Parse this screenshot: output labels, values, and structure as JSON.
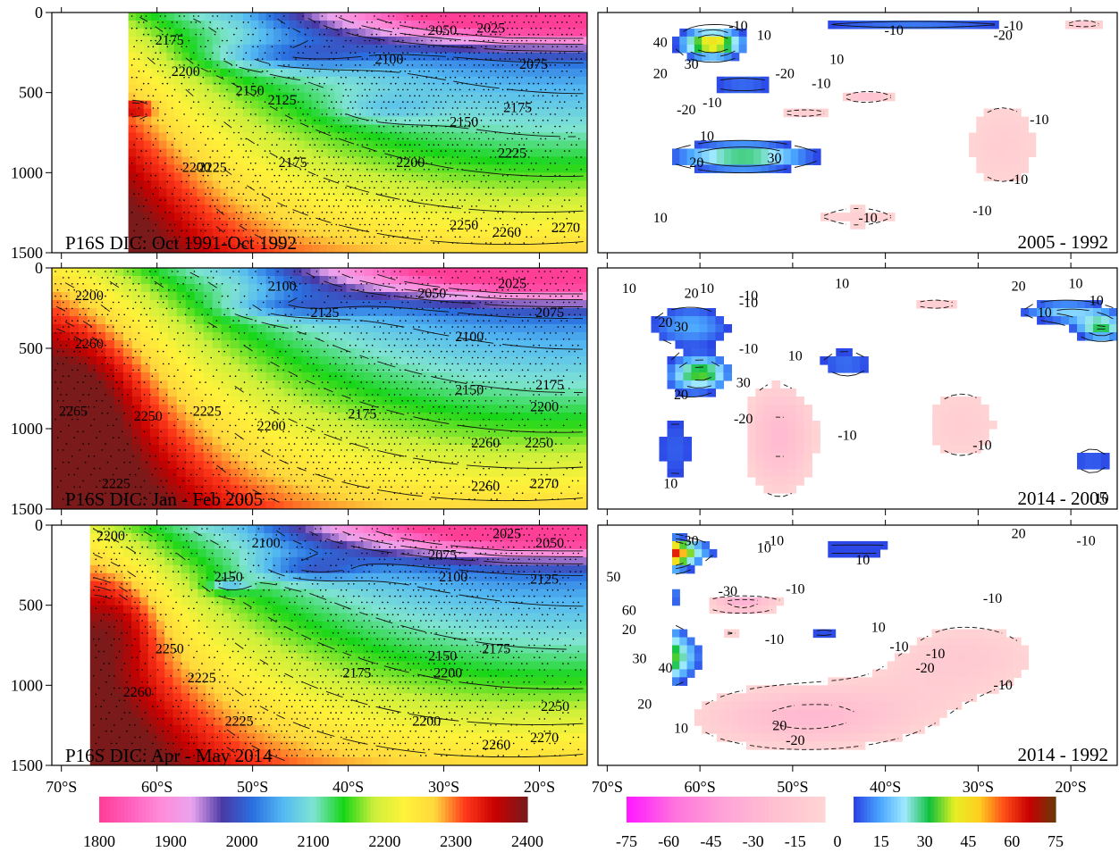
{
  "chart_data": [
    {
      "type": "heatmap",
      "panel": "left-1",
      "label": "P16S DIC: Oct 1991-Oct 1992",
      "x_ticks": [
        "70°S",
        "60°S",
        "50°S",
        "40°S",
        "30°S",
        "20°S"
      ],
      "y_ticks": [
        "0",
        "500",
        "1000",
        "1500"
      ],
      "xlim": [
        -71,
        -15
      ],
      "ylim": [
        1500,
        0
      ],
      "data_xlim": [
        -63,
        -15
      ],
      "contour_labels": [
        "2175",
        "2200",
        "2150",
        "2125",
        "2100",
        "2050",
        "2025",
        "2075",
        "2150",
        "2175",
        "2225",
        "2200",
        "2175",
        "2200",
        "2225",
        "2250",
        "2260",
        "2270"
      ]
    },
    {
      "type": "heatmap",
      "panel": "left-2",
      "label": "P16S DIC: Jan - Feb 2005",
      "x_ticks": [
        "70°S",
        "60°S",
        "50°S",
        "40°S",
        "30°S",
        "20°S"
      ],
      "y_ticks": [
        "0",
        "500",
        "1000",
        "1500"
      ],
      "xlim": [
        -71,
        -15
      ],
      "ylim": [
        1500,
        0
      ],
      "data_xlim": [
        -71,
        -15
      ],
      "contour_labels": [
        "2200",
        "2260",
        "2100",
        "2050",
        "2025",
        "2125",
        "2075",
        "2100",
        "2175",
        "2150",
        "2200",
        "2175",
        "2225",
        "2200",
        "2265",
        "2250",
        "2225",
        "2250",
        "2260",
        "2260",
        "2270"
      ]
    },
    {
      "type": "heatmap",
      "panel": "left-3",
      "label": "P16S DIC: Apr - May 2014",
      "x_ticks": [
        "70°S",
        "60°S",
        "50°S",
        "40°S",
        "30°S",
        "20°S"
      ],
      "y_ticks": [
        "0",
        "500",
        "1000",
        "1500"
      ],
      "xlim": [
        -71,
        -15
      ],
      "ylim": [
        1500,
        0
      ],
      "data_xlim": [
        -67,
        -15
      ],
      "contour_labels": [
        "2200",
        "2100",
        "2025",
        "2050",
        "2075",
        "2150",
        "2100",
        "2125",
        "2150",
        "2175",
        "2250",
        "2260",
        "2225",
        "2175",
        "2200",
        "2225",
        "2200",
        "2250",
        "2260",
        "2270"
      ]
    },
    {
      "type": "heatmap",
      "panel": "right-1",
      "label": "2005 - 1992",
      "x_ticks": [
        "70°S",
        "60°S",
        "50°S",
        "40°S",
        "30°S",
        "20°S"
      ],
      "y_ticks": [
        "0",
        "500",
        "1000",
        "1500"
      ],
      "xlim": [
        -71,
        -15
      ],
      "ylim": [
        1500,
        0
      ],
      "data_xlim": [
        -63,
        -15
      ],
      "contour_labels": [
        "-10",
        "40",
        "10",
        "-10",
        "-20",
        "20",
        "30",
        "10",
        "-10",
        "-20",
        "-10",
        "-10",
        "-20",
        "-10",
        "10",
        "20",
        "30",
        "-10",
        "10",
        "-10",
        "-10"
      ]
    },
    {
      "type": "heatmap",
      "panel": "right-2",
      "label": "2014 - 2005",
      "x_ticks": [
        "70°S",
        "60°S",
        "50°S",
        "40°S",
        "30°S",
        "20°S"
      ],
      "y_ticks": [
        "0",
        "500",
        "1000",
        "1500"
      ],
      "xlim": [
        -71,
        -15
      ],
      "ylim": [
        1500,
        0
      ],
      "data_xlim": [
        -67,
        -15
      ],
      "contour_labels": [
        "10",
        "20",
        "10",
        "-10",
        "10",
        "20",
        "10",
        "20",
        "-10",
        "30",
        "10",
        "10",
        "20",
        "30",
        "-10",
        "10",
        "-20",
        "-10",
        "-10",
        "10",
        "10"
      ]
    },
    {
      "type": "heatmap",
      "panel": "right-3",
      "label": "2014 - 1992",
      "x_ticks": [
        "70°S",
        "60°S",
        "50°S",
        "40°S",
        "30°S",
        "20°S"
      ],
      "y_ticks": [
        "0",
        "500",
        "1000",
        "1500"
      ],
      "xlim": [
        -71,
        -15
      ],
      "ylim": [
        1500,
        0
      ],
      "data_xlim": [
        -63,
        -15
      ],
      "contour_labels": [
        "30",
        "-10",
        "10",
        "50",
        "20",
        "10",
        "-10",
        "60",
        "-30",
        "-10",
        "-10",
        "20",
        "10",
        "-10",
        "30",
        "-10",
        "40",
        "-10",
        "-10",
        "20",
        "-20",
        "20",
        "10",
        "-20"
      ]
    }
  ],
  "colorbars": [
    {
      "ticks": [
        "1800",
        "1900",
        "2000",
        "2100",
        "2200",
        "2300",
        "2400"
      ],
      "colors": [
        "#ff3f97",
        "#ff62bf",
        "#ff8cd9",
        "#e9a4ee",
        "#4a3aa6",
        "#2a6fe0",
        "#53b9f2",
        "#7fe3d3",
        "#17d617",
        "#ccf03a",
        "#fff23a",
        "#ffd83c",
        "#ff3a1a",
        "#c80000",
        "#7a1a1a"
      ]
    },
    {
      "ticks": [
        "-75",
        "-60",
        "-45",
        "-30",
        "-15",
        "0",
        "15",
        "30",
        "45",
        "60",
        "75"
      ],
      "neg_colors": [
        "#ff1aff",
        "#ff76dc",
        "#ffa5d8",
        "#ffc0d0",
        "#ffd4d4"
      ],
      "pos_colors": [
        "#2b46e6",
        "#4aa6ff",
        "#9fe9ff",
        "#10c13a",
        "#e6ef24",
        "#ffce1f",
        "#ff4d18",
        "#c80000",
        "#6e3608"
      ]
    }
  ]
}
